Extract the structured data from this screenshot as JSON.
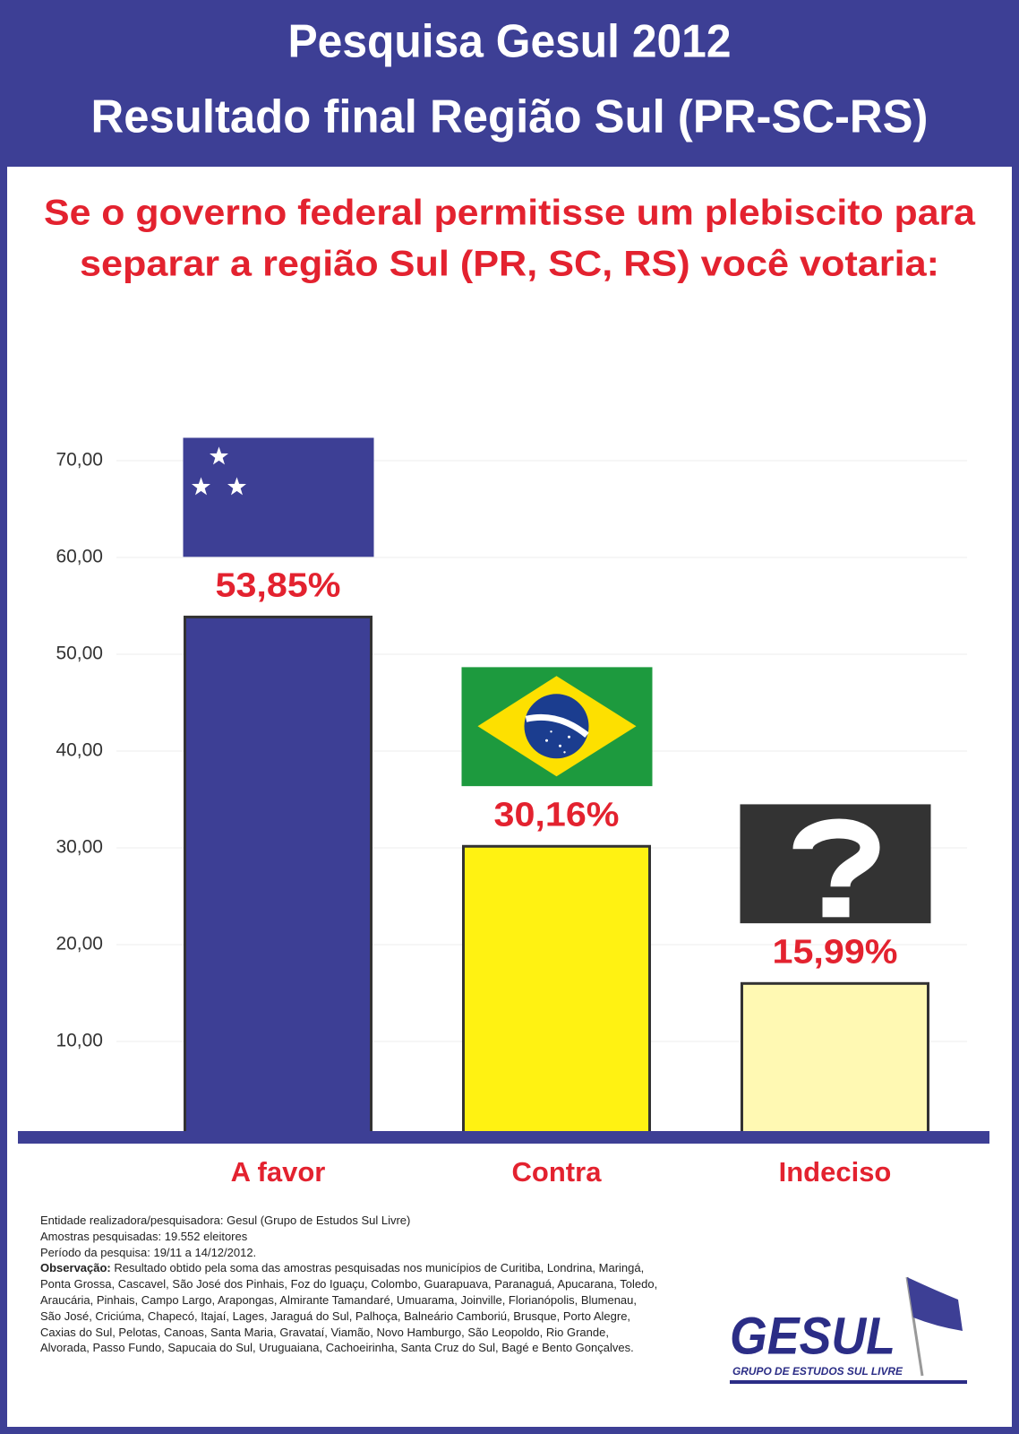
{
  "chart_data": {
    "type": "bar",
    "title": "Pesquisa Gesul 2012",
    "subtitle": "Resultado final Região Sul (PR-SC-RS)",
    "question": [
      "Se o governo federal permitisse um plebiscito para",
      "separar a região Sul (PR, SC, RS) você votaria:"
    ],
    "categories": [
      "A favor",
      "Contra",
      "Indeciso"
    ],
    "values": [
      53.85,
      30.16,
      15.99
    ],
    "value_labels": [
      "53,85%",
      "30,16%",
      "15,99%"
    ],
    "colors": [
      "#3d3f95",
      "#fff212",
      "#fff9b3"
    ],
    "ylim": [
      0,
      70
    ],
    "yticks": [
      {
        "value": 10,
        "label": "10,00"
      },
      {
        "value": 20,
        "label": "20,00"
      },
      {
        "value": 30,
        "label": "30,00"
      },
      {
        "value": 40,
        "label": "40,00"
      },
      {
        "value": 50,
        "label": "50,00"
      },
      {
        "value": 60,
        "label": "60,00"
      },
      {
        "value": 70,
        "label": "70,00"
      }
    ],
    "grid": true
  },
  "footer": {
    "entity_label": "Entidade realizadora/pesquisadora:",
    "entity": "Gesul (Grupo de Estudos Sul Livre)",
    "samples": "Amostras pesquisadas: 19.552 eleitores",
    "period": "Período da pesquisa: 19/11 a 14/12/2012.",
    "note_label": "Observação:",
    "note": "Resultado obtido pela soma das amostras pesquisadas nos municípios de Curitiba, Londrina, Maringá, Ponta Grossa, Cascavel, São José dos Pinhais, Foz do Iguaçu, Colombo, Guarapuava, Paranaguá, Apucarana, Toledo, Araucária, Pinhais, Campo Largo, Arapongas, Almirante Tamandaré, Umuarama, Joinville, Florianópolis, Blumenau, São José, Criciúma, Chapecó, Itajaí, Lages, Jaraguá do Sul, Palhoça, Balneário Camboriú, Brusque, Porto Alegre, Caxias do Sul, Pelotas, Canoas, Santa Maria, Gravataí, Viamão, Novo Hamburgo, São Leopoldo, Rio Grande, Alvorada, Passo Fundo, Sapucaia do Sul, Uruguaiana, Cachoeirinha, Santa Cruz do Sul, Bagé e Bento Gonçalves."
  },
  "logo": {
    "name": "GESUL",
    "tagline": "GRUPO DE ESTUDOS SUL LIVRE"
  }
}
